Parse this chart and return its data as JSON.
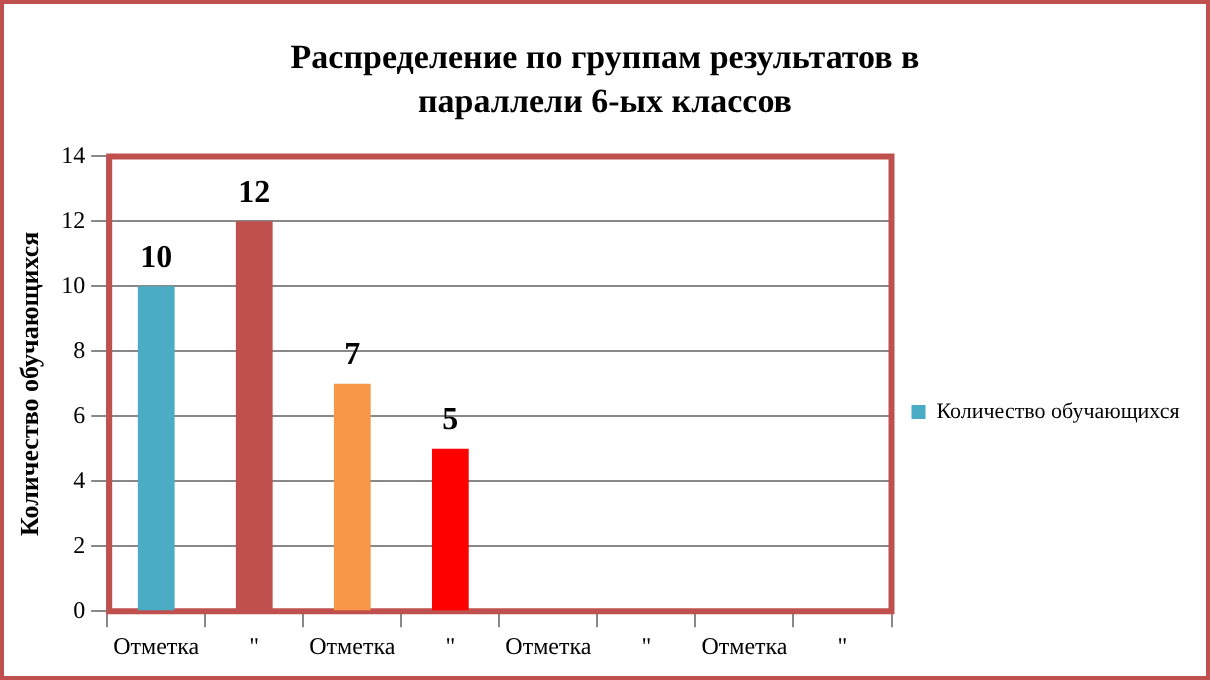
{
  "chart_data": {
    "type": "bar",
    "title": "Распределение по группам результатов в параллели 6-ых классов",
    "ylabel": "Количество обучающихся",
    "categories": [
      "Отметка",
      "\"",
      "Отметка",
      "\"",
      "Отметка",
      "\"",
      "Отметка",
      "\""
    ],
    "series": [
      {
        "name": "Количество обучающихся",
        "color": "#4bacc6",
        "values": [
          10,
          12,
          7,
          5,
          null,
          null,
          null,
          null
        ],
        "colors": [
          "#4bacc6",
          "#c0504d",
          "#f79646",
          "#ff0000",
          "#4bacc6",
          "#c0504d",
          "#f79646",
          "#ff0000"
        ]
      }
    ],
    "ylim": [
      0,
      14
    ],
    "yticks": [
      0,
      2,
      4,
      6,
      8,
      10,
      12,
      14
    ],
    "grid": "y",
    "legend": "right",
    "data_labels": true
  }
}
